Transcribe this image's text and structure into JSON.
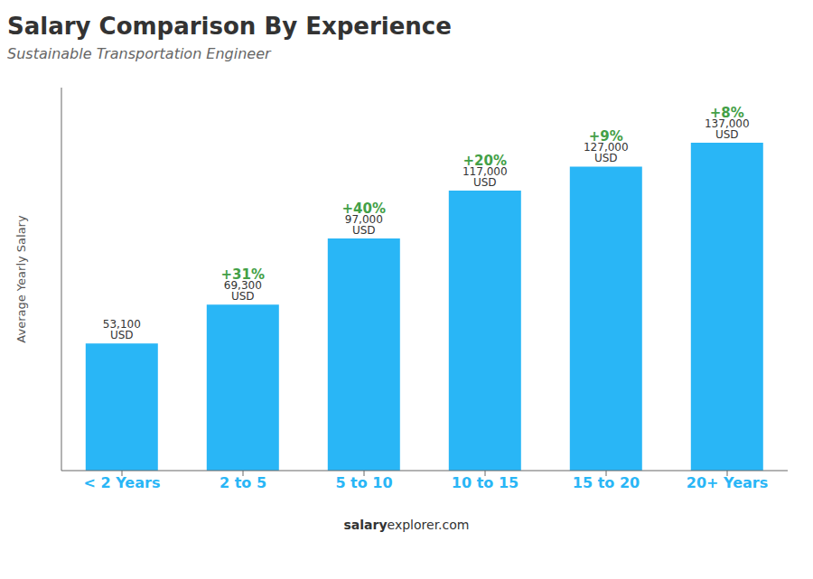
{
  "chart_data": {
    "type": "bar",
    "title": "Salary Comparison By Experience",
    "subtitle": "Sustainable Transportation Engineer",
    "categories": [
      "< 2 Years",
      "2 to 5",
      "5 to 10",
      "10 to 15",
      "15 to 20",
      "20+ Years"
    ],
    "values": [
      53100,
      69300,
      97000,
      117000,
      127000,
      137000
    ],
    "value_labels": [
      "53,100 USD",
      "69,300 USD",
      "97,000 USD",
      "117,000 USD",
      "127,000 USD",
      "137,000 USD"
    ],
    "data_labels": true,
    "annotations": [
      "+31%",
      "+40%",
      "+20%",
      "+9%",
      "+8%"
    ],
    "y_label": "Average Yearly Salary",
    "footer": [
      "salary",
      "explorer.com"
    ],
    "color": "#29b6f6",
    "ylim": [
      0,
      160000
    ],
    "grid": false,
    "tick_labels": "x"
  }
}
